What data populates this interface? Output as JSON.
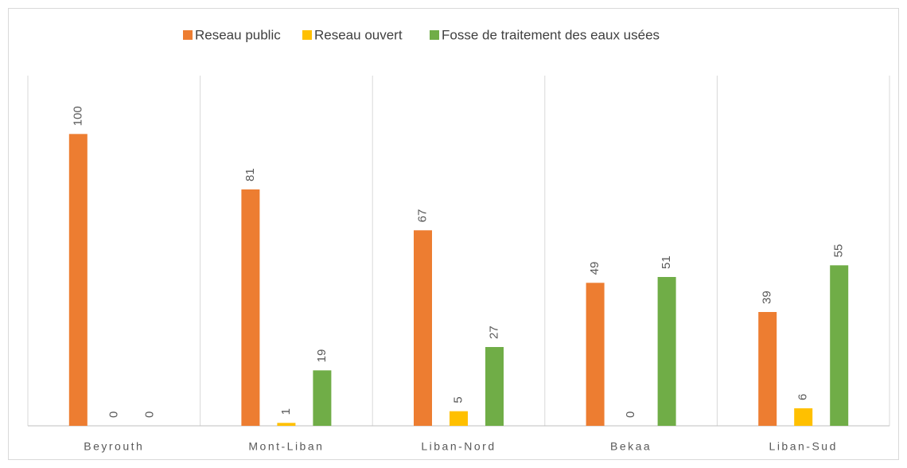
{
  "chart_data": {
    "type": "bar",
    "categories": [
      "Beyrouth",
      "Mont-Liban",
      "Liban-Nord",
      "Bekaa",
      "Liban-Sud"
    ],
    "series": [
      {
        "name": "Reseau public",
        "color": "#ed7d31",
        "values": [
          100,
          81,
          67,
          49,
          39
        ]
      },
      {
        "name": "Reseau ouvert",
        "color": "#ffc000",
        "values": [
          0,
          1,
          5,
          0,
          6
        ]
      },
      {
        "name": "Fosse de traitement des eaux usées",
        "color": "#70ad47",
        "values": [
          0,
          19,
          27,
          51,
          55
        ]
      }
    ],
    "ylim": [
      0,
      120
    ],
    "legend": "top"
  }
}
